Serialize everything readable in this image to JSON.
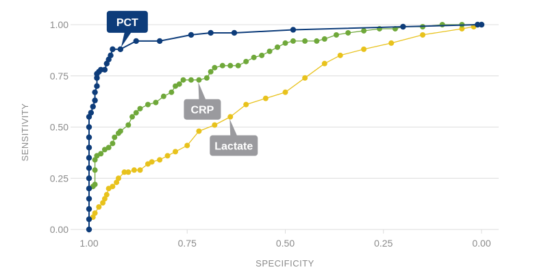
{
  "chart_data": {
    "type": "line",
    "title": "",
    "xlabel": "SPECIFICITY",
    "ylabel": "SENSITIVITY",
    "xlim": [
      1.0,
      0.0
    ],
    "ylim": [
      0.0,
      1.0
    ],
    "x_reversed": true,
    "grid": true,
    "x_ticks": [
      "1.00",
      "0.75",
      "0.50",
      "0.25",
      "0.00"
    ],
    "x_tick_values": [
      1.0,
      0.75,
      0.5,
      0.25,
      0.0
    ],
    "y_ticks": [
      "0.00",
      "0.25",
      "0.50",
      "0.75",
      "1.00"
    ],
    "y_tick_values": [
      0.0,
      0.25,
      0.5,
      0.75,
      1.0
    ],
    "series": [
      {
        "name": "Lactate",
        "color": "#e8c21c",
        "points": [
          [
            1.0,
            0.05
          ],
          [
            0.99,
            0.06
          ],
          [
            0.985,
            0.08
          ],
          [
            0.975,
            0.11
          ],
          [
            0.965,
            0.13
          ],
          [
            0.96,
            0.15
          ],
          [
            0.955,
            0.17
          ],
          [
            0.95,
            0.2
          ],
          [
            0.94,
            0.21
          ],
          [
            0.93,
            0.23
          ],
          [
            0.925,
            0.25
          ],
          [
            0.91,
            0.28
          ],
          [
            0.9,
            0.28
          ],
          [
            0.885,
            0.29
          ],
          [
            0.87,
            0.29
          ],
          [
            0.85,
            0.32
          ],
          [
            0.84,
            0.33
          ],
          [
            0.82,
            0.34
          ],
          [
            0.8,
            0.36
          ],
          [
            0.78,
            0.38
          ],
          [
            0.75,
            0.41
          ],
          [
            0.72,
            0.48
          ],
          [
            0.68,
            0.51
          ],
          [
            0.64,
            0.55
          ],
          [
            0.6,
            0.61
          ],
          [
            0.55,
            0.64
          ],
          [
            0.5,
            0.67
          ],
          [
            0.45,
            0.74
          ],
          [
            0.4,
            0.81
          ],
          [
            0.36,
            0.85
          ],
          [
            0.3,
            0.88
          ],
          [
            0.23,
            0.91
          ],
          [
            0.15,
            0.95
          ],
          [
            0.05,
            0.98
          ],
          [
            0.02,
            0.99
          ],
          [
            0.0,
            1.0
          ]
        ]
      },
      {
        "name": "CRP",
        "color": "#6fa83a",
        "points": [
          [
            1.0,
            0.2
          ],
          [
            0.99,
            0.21
          ],
          [
            0.985,
            0.22
          ],
          [
            0.985,
            0.29
          ],
          [
            0.985,
            0.34
          ],
          [
            0.98,
            0.36
          ],
          [
            0.97,
            0.37
          ],
          [
            0.96,
            0.39
          ],
          [
            0.95,
            0.4
          ],
          [
            0.94,
            0.42
          ],
          [
            0.935,
            0.45
          ],
          [
            0.925,
            0.47
          ],
          [
            0.92,
            0.48
          ],
          [
            0.9,
            0.51
          ],
          [
            0.89,
            0.55
          ],
          [
            0.88,
            0.57
          ],
          [
            0.87,
            0.59
          ],
          [
            0.85,
            0.61
          ],
          [
            0.83,
            0.62
          ],
          [
            0.81,
            0.65
          ],
          [
            0.79,
            0.67
          ],
          [
            0.78,
            0.7
          ],
          [
            0.77,
            0.71
          ],
          [
            0.76,
            0.73
          ],
          [
            0.74,
            0.73
          ],
          [
            0.72,
            0.73
          ],
          [
            0.7,
            0.74
          ],
          [
            0.69,
            0.77
          ],
          [
            0.68,
            0.79
          ],
          [
            0.66,
            0.8
          ],
          [
            0.64,
            0.8
          ],
          [
            0.62,
            0.8
          ],
          [
            0.6,
            0.82
          ],
          [
            0.58,
            0.84
          ],
          [
            0.56,
            0.85
          ],
          [
            0.54,
            0.87
          ],
          [
            0.52,
            0.89
          ],
          [
            0.5,
            0.91
          ],
          [
            0.48,
            0.92
          ],
          [
            0.45,
            0.92
          ],
          [
            0.42,
            0.92
          ],
          [
            0.4,
            0.93
          ],
          [
            0.37,
            0.95
          ],
          [
            0.34,
            0.96
          ],
          [
            0.3,
            0.97
          ],
          [
            0.26,
            0.98
          ],
          [
            0.22,
            0.98
          ],
          [
            0.2,
            0.99
          ],
          [
            0.15,
            0.99
          ],
          [
            0.1,
            1.0
          ],
          [
            0.05,
            1.0
          ],
          [
            0.0,
            1.0
          ]
        ]
      },
      {
        "name": "PCT",
        "color": "#0d3c7a",
        "points": [
          [
            1.0,
            0.0
          ],
          [
            1.0,
            0.05
          ],
          [
            1.0,
            0.1
          ],
          [
            1.0,
            0.15
          ],
          [
            1.0,
            0.2
          ],
          [
            1.0,
            0.25
          ],
          [
            1.0,
            0.3
          ],
          [
            1.0,
            0.35
          ],
          [
            1.0,
            0.4
          ],
          [
            1.0,
            0.45
          ],
          [
            1.0,
            0.5
          ],
          [
            1.0,
            0.55
          ],
          [
            0.995,
            0.57
          ],
          [
            0.99,
            0.6
          ],
          [
            0.985,
            0.63
          ],
          [
            0.985,
            0.67
          ],
          [
            0.98,
            0.7
          ],
          [
            0.98,
            0.74
          ],
          [
            0.98,
            0.76
          ],
          [
            0.975,
            0.77
          ],
          [
            0.97,
            0.78
          ],
          [
            0.96,
            0.78
          ],
          [
            0.955,
            0.81
          ],
          [
            0.95,
            0.83
          ],
          [
            0.945,
            0.85
          ],
          [
            0.94,
            0.88
          ],
          [
            0.92,
            0.88
          ],
          [
            0.88,
            0.92
          ],
          [
            0.82,
            0.92
          ],
          [
            0.74,
            0.95
          ],
          [
            0.69,
            0.96
          ],
          [
            0.63,
            0.96
          ],
          [
            0.48,
            0.975
          ],
          [
            0.2,
            0.99
          ],
          [
            0.01,
            1.0
          ],
          [
            0.0,
            1.0
          ]
        ]
      }
    ],
    "annotations": [
      {
        "text": "PCT",
        "series": "PCT",
        "x": 0.92,
        "y": 0.88,
        "color": "#0d3c7a"
      },
      {
        "text": "CRP",
        "series": "CRP",
        "x": 0.72,
        "y": 0.73,
        "color": "#9a9a9e"
      },
      {
        "text": "Lactate",
        "series": "Lactate",
        "x": 0.64,
        "y": 0.55,
        "color": "#9a9a9e"
      }
    ]
  }
}
